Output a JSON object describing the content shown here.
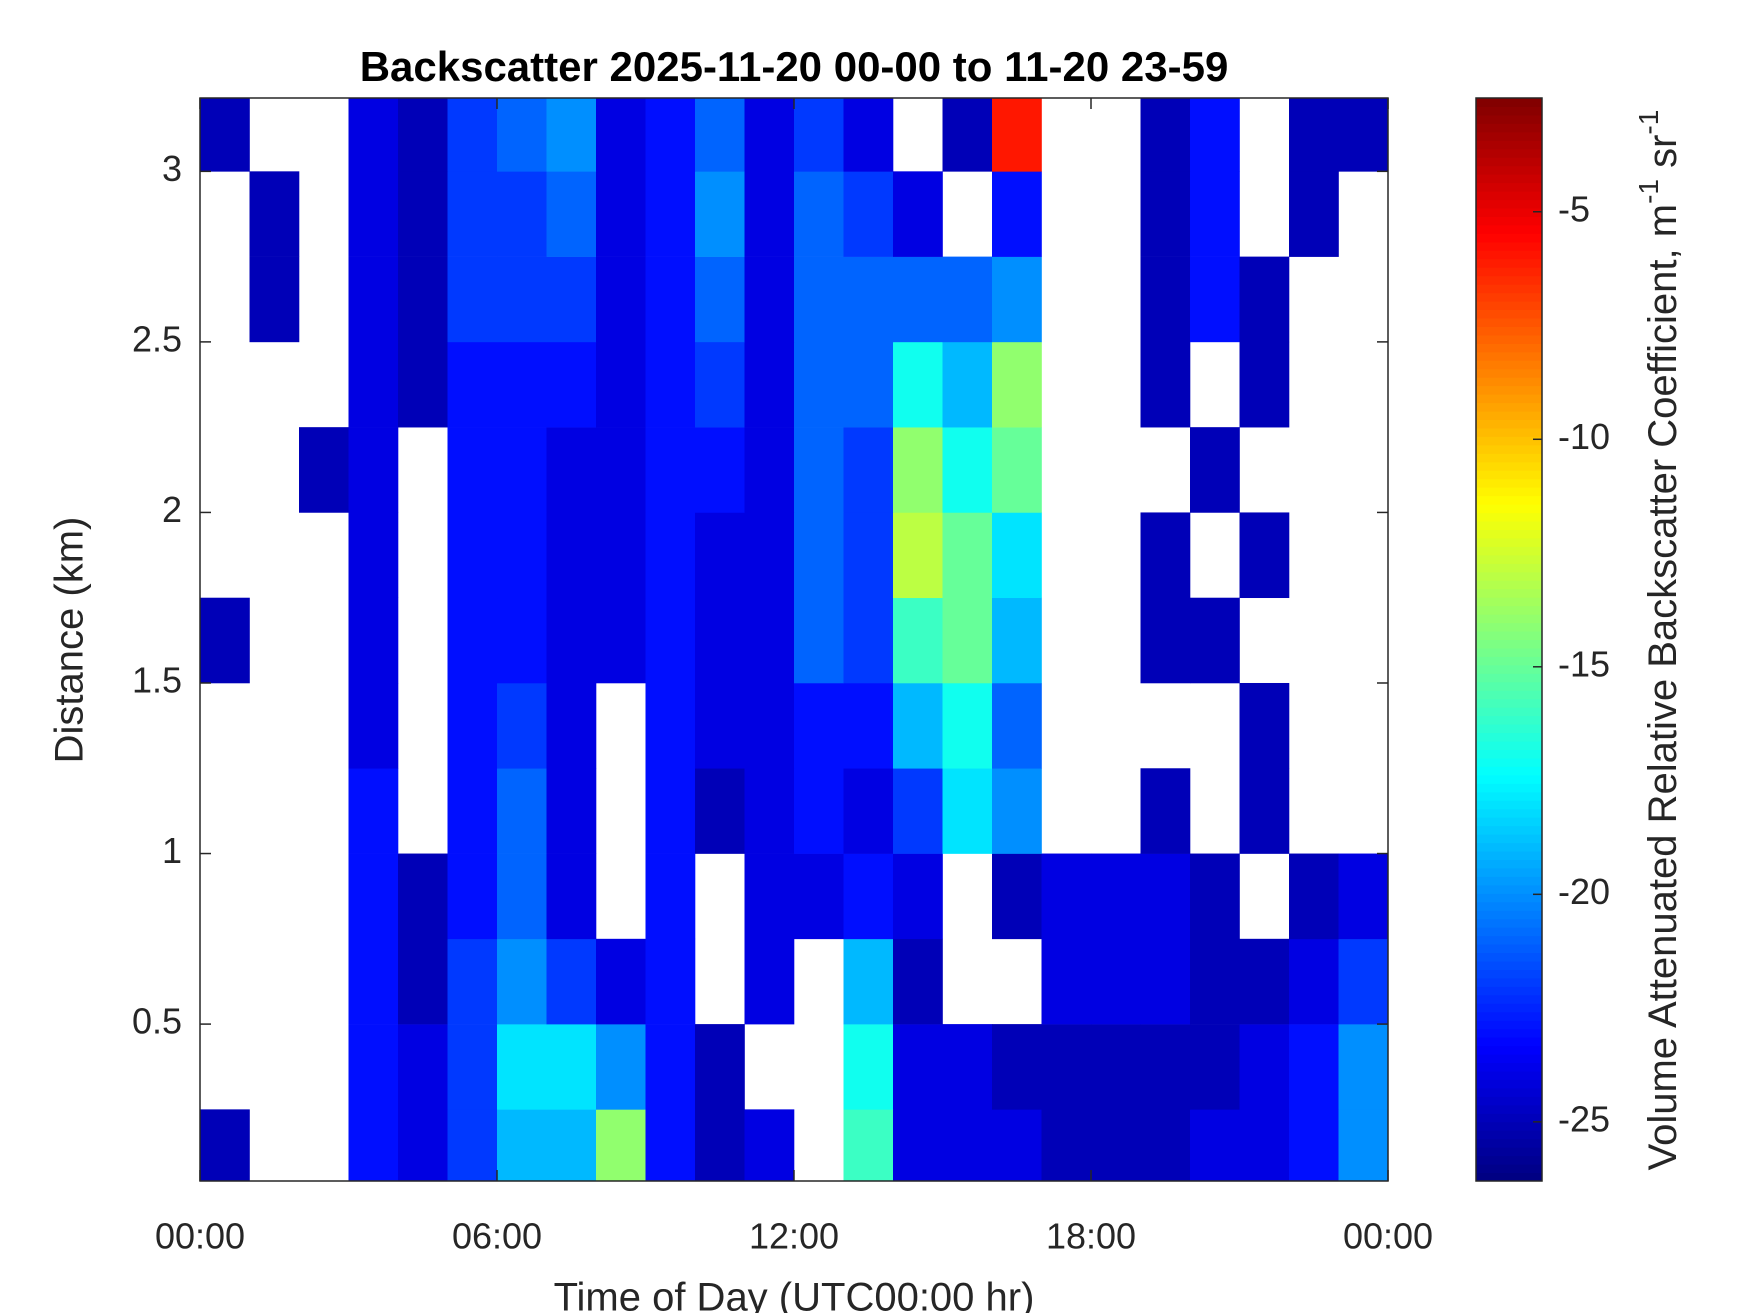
{
  "chart_data": {
    "type": "heatmap",
    "title": "Backscatter 2025-11-20 00-00 to 11-20 23-59",
    "xlabel": "Time of Day (UTC00:00 hr)",
    "ylabel": "Distance (km)",
    "colorbar_label": {
      "text": "Volume Attenuated Relative Backscatter Coefficient, m",
      "sup1": "-1",
      "mid": " sr",
      "sup2": "-1"
    },
    "colormap": "jet",
    "x_bins": [
      0,
      1,
      2,
      3,
      4,
      5,
      6,
      7,
      8,
      9,
      10,
      11,
      12,
      13,
      14,
      15,
      16,
      17,
      18,
      19,
      20,
      21,
      22,
      23,
      24
    ],
    "y_bins": [
      0.04,
      0.25,
      0.5,
      0.75,
      1,
      1.25,
      1.5,
      1.75,
      2,
      2.25,
      2.5,
      2.75,
      3,
      3.215
    ],
    "z": [
      [
        -25,
        null,
        null,
        -23,
        -24,
        -22,
        -19,
        -19,
        -14,
        -23,
        -25,
        -24,
        null,
        -16,
        -24,
        -24,
        -24,
        -25,
        -25,
        -25,
        -24,
        -24,
        -23,
        -20
      ],
      [
        null,
        null,
        null,
        -23,
        -24,
        -22,
        -18,
        -18,
        -20,
        -23,
        -25,
        null,
        null,
        -17,
        -24,
        -24,
        -25,
        -25,
        -25,
        -25,
        -25,
        -24,
        -23,
        -20
      ],
      [
        null,
        null,
        null,
        -23,
        -25,
        -22,
        -20,
        -22,
        -24,
        -23,
        null,
        -24,
        null,
        -19,
        -25,
        null,
        null,
        -24,
        -24,
        -24,
        -25,
        -25,
        -24,
        -22
      ],
      [
        null,
        null,
        null,
        -23,
        -25,
        -23,
        -21,
        -24,
        null,
        -23,
        null,
        -24,
        -24,
        -23,
        -24,
        null,
        -25,
        -24,
        -24,
        -24,
        -25,
        null,
        -25,
        -24
      ],
      [
        null,
        null,
        null,
        -23,
        null,
        -23,
        -21,
        -24,
        null,
        -23,
        -25,
        -24,
        -23,
        -24,
        -22,
        -18,
        -20,
        null,
        null,
        -25,
        null,
        -25,
        null,
        null
      ],
      [
        null,
        null,
        null,
        -24,
        null,
        -23,
        -22,
        -24,
        null,
        -23,
        -24,
        -24,
        -23,
        -23,
        -19,
        -17,
        -21,
        null,
        null,
        null,
        null,
        -25,
        null,
        null
      ],
      [
        -25,
        null,
        null,
        -24,
        null,
        -23,
        -23,
        -24,
        -24,
        -23,
        -24,
        -24,
        -21,
        -22,
        -16,
        -15,
        -19,
        null,
        null,
        -25,
        -25,
        null,
        null,
        null
      ],
      [
        null,
        null,
        null,
        -24,
        null,
        -23,
        -23,
        -24,
        -24,
        -23,
        -24,
        -24,
        -21,
        -22,
        -13,
        -15,
        -18,
        null,
        null,
        -25,
        null,
        -25,
        null,
        null
      ],
      [
        null,
        null,
        -25,
        -24,
        null,
        -23,
        -23,
        -24,
        -24,
        -23,
        -23,
        -24,
        -21,
        -22,
        -14,
        -17,
        -15,
        null,
        null,
        null,
        -25,
        null,
        null,
        null
      ],
      [
        null,
        null,
        null,
        -24,
        -25,
        -23,
        -23,
        -23,
        -24,
        -23,
        -22,
        -24,
        -21,
        -21,
        -17,
        -19,
        -14,
        null,
        null,
        -25,
        null,
        -25,
        null,
        null
      ],
      [
        null,
        -25,
        null,
        -24,
        -25,
        -22,
        -22,
        -22,
        -24,
        -23,
        -21,
        -24,
        -21,
        -21,
        -21,
        -21,
        -20,
        null,
        null,
        -25,
        -23,
        -25,
        null,
        null
      ],
      [
        null,
        -25,
        null,
        -24,
        -25,
        -22,
        -22,
        -21,
        -24,
        -23,
        -20,
        -24,
        -21,
        -22,
        -24,
        null,
        -23,
        null,
        null,
        -25,
        -23,
        null,
        -25,
        null
      ],
      [
        -25,
        null,
        null,
        -24,
        -25,
        -22,
        -21,
        -20,
        -24,
        -23,
        -21,
        -24,
        -22,
        -24,
        null,
        -25,
        -6,
        null,
        null,
        -25,
        -23,
        null,
        -25,
        -25
      ]
    ],
    "xlim": [
      0,
      24
    ],
    "xticks": [
      {
        "value": 0,
        "label": "00:00"
      },
      {
        "value": 6,
        "label": "06:00"
      },
      {
        "value": 12,
        "label": "12:00"
      },
      {
        "value": 18,
        "label": "18:00"
      },
      {
        "value": 24,
        "label": "00:00"
      }
    ],
    "ylim": [
      0.04,
      3.215
    ],
    "yticks": [
      0.5,
      1,
      1.5,
      2,
      2.5,
      3
    ],
    "clim": [
      -26.3,
      -2.5
    ],
    "cticks": [
      -25,
      -20,
      -15,
      -10,
      -5
    ]
  }
}
